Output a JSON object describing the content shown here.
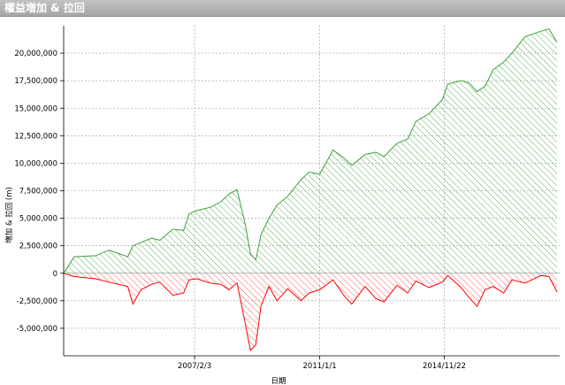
{
  "window": {
    "title": "權益増加 & 拉回"
  },
  "chart_data": {
    "type": "area",
    "title": "權益増加 & 拉回",
    "xlabel": "日期",
    "ylabel": "増加 & 拉回 (m)",
    "ylim": [
      -7500000,
      22500000
    ],
    "yticks": [
      20000000,
      17500000,
      15000000,
      12500000,
      10000000,
      7500000,
      5000000,
      2500000,
      0,
      -2500000,
      -5000000
    ],
    "ytick_labels": [
      "20,000,000",
      "17,500,000",
      "15,000,000",
      "12,500,000",
      "10,000,000",
      "7,500,000",
      "5,000,000",
      "2,500,000",
      "0",
      "-2,500,000",
      "-5,000,000"
    ],
    "xlim": [
      "2003-01-01",
      "2018-07-01"
    ],
    "xticks": [
      "2007-02-03",
      "2011-01-01",
      "2014-11-22"
    ],
    "xtick_labels": [
      "2007/2/3",
      "2011/1/1",
      "2014/11/22"
    ],
    "grid": true,
    "series": [
      {
        "color": "#3f9f3f",
        "fill": "hatch-green",
        "x": [
          "2003-01-01",
          "2003-05-01",
          "2004-01-01",
          "2004-06-01",
          "2005-01-01",
          "2005-03-01",
          "2005-06-01",
          "2005-10-01",
          "2006-01-01",
          "2006-06-01",
          "2006-10-01",
          "2006-12-01",
          "2007-03-01",
          "2007-08-01",
          "2007-12-01",
          "2008-03-01",
          "2008-06-01",
          "2008-09-01",
          "2008-11-01",
          "2009-01-01",
          "2009-03-01",
          "2009-06-01",
          "2009-09-01",
          "2010-01-01",
          "2010-06-01",
          "2010-09-01",
          "2011-01-01",
          "2011-06-01",
          "2011-10-01",
          "2012-01-01",
          "2012-06-01",
          "2012-10-01",
          "2013-01-01",
          "2013-06-01",
          "2013-10-01",
          "2014-01-01",
          "2014-06-01",
          "2014-11-01",
          "2015-01-01",
          "2015-06-01",
          "2015-09-01",
          "2015-12-01",
          "2016-03-01",
          "2016-06-01",
          "2016-10-01",
          "2017-01-01",
          "2017-06-01",
          "2017-12-01",
          "2018-03-01",
          "2018-06-01"
        ],
        "values": [
          0,
          1500000,
          1600000,
          2100000,
          1500000,
          2500000,
          2800000,
          3200000,
          3000000,
          4000000,
          3900000,
          5400000,
          5700000,
          6000000,
          6500000,
          7200000,
          7600000,
          4500000,
          1800000,
          1200000,
          3500000,
          5000000,
          6200000,
          7000000,
          8500000,
          9200000,
          9000000,
          11200000,
          10500000,
          9800000,
          10800000,
          11000000,
          10600000,
          11800000,
          12200000,
          13800000,
          14500000,
          15800000,
          17200000,
          17500000,
          17300000,
          16500000,
          17000000,
          18500000,
          19200000,
          20000000,
          21500000,
          22000000,
          22200000,
          21000000
        ]
      },
      {
        "color": "#ff0000",
        "fill": "hatch-red",
        "x": [
          "2003-01-01",
          "2003-05-01",
          "2004-01-01",
          "2004-06-01",
          "2005-01-01",
          "2005-03-01",
          "2005-06-01",
          "2005-10-01",
          "2006-01-01",
          "2006-06-01",
          "2006-10-01",
          "2006-12-01",
          "2007-03-01",
          "2007-08-01",
          "2007-12-01",
          "2008-03-01",
          "2008-06-01",
          "2008-09-01",
          "2008-11-01",
          "2009-01-01",
          "2009-03-01",
          "2009-06-01",
          "2009-09-01",
          "2010-01-01",
          "2010-06-01",
          "2010-09-01",
          "2011-01-01",
          "2011-06-01",
          "2011-10-01",
          "2012-01-01",
          "2012-06-01",
          "2012-10-01",
          "2013-01-01",
          "2013-06-01",
          "2013-10-01",
          "2014-01-01",
          "2014-06-01",
          "2014-11-01",
          "2015-01-01",
          "2015-06-01",
          "2015-09-01",
          "2015-12-01",
          "2016-03-01",
          "2016-06-01",
          "2016-10-01",
          "2017-01-01",
          "2017-06-01",
          "2017-12-01",
          "2018-03-01",
          "2018-06-01"
        ],
        "values": [
          0,
          -300000,
          -500000,
          -800000,
          -1200000,
          -2800000,
          -1500000,
          -1000000,
          -800000,
          -2000000,
          -1800000,
          -600000,
          -500000,
          -900000,
          -1000000,
          -1500000,
          -900000,
          -4500000,
          -7000000,
          -6500000,
          -3000000,
          -1200000,
          -2500000,
          -1400000,
          -2500000,
          -1800000,
          -1500000,
          -600000,
          -2000000,
          -2800000,
          -1200000,
          -2300000,
          -2600000,
          -1100000,
          -1800000,
          -700000,
          -1300000,
          -800000,
          -200000,
          -1300000,
          -2200000,
          -3000000,
          -1500000,
          -1200000,
          -1800000,
          -600000,
          -900000,
          -200000,
          -300000,
          -1700000
        ]
      }
    ]
  }
}
